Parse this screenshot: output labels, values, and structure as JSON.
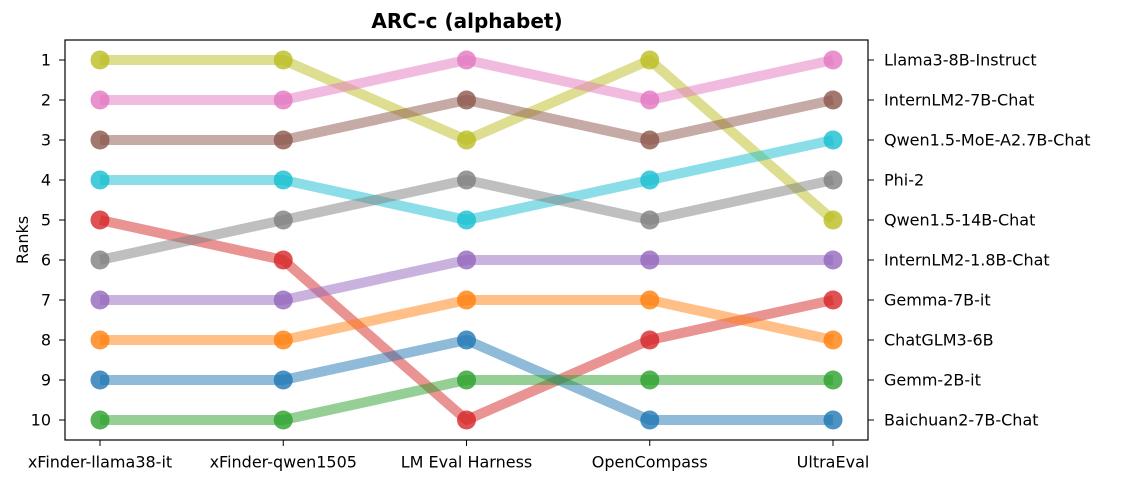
{
  "chart_data": {
    "type": "line",
    "title": "ARC-c (alphabet)",
    "xlabel": "",
    "ylabel": "Ranks",
    "categories": [
      "xFinder-llama38-it",
      "xFinder-qwen1505",
      "LM Eval Harness",
      "OpenCompass",
      "UltraEval"
    ],
    "y_ticks": [
      "1",
      "2",
      "3",
      "4",
      "5",
      "6",
      "7",
      "8",
      "9",
      "10"
    ],
    "ylim": [
      1,
      10
    ],
    "y_inverted": true,
    "right_labels": [
      "Llama3-8B-Instruct",
      "InternLM2-7B-Chat",
      "Qwen1.5-MoE-A2.7B-Chat",
      "Phi-2",
      "Qwen1.5-14B-Chat",
      "InternLM2-1.8B-Chat",
      "Gemma-7B-it",
      "ChatGLM3-6B",
      "Gemm-2B-it",
      "Baichuan2-7B-Chat"
    ],
    "series": [
      {
        "name": "olive",
        "color": "#bcbd22",
        "values": [
          1,
          1,
          3,
          1,
          5
        ]
      },
      {
        "name": "pink",
        "color": "#e377c2",
        "values": [
          2,
          2,
          1,
          2,
          1
        ]
      },
      {
        "name": "brown",
        "color": "#8c564b",
        "values": [
          3,
          3,
          2,
          3,
          2
        ]
      },
      {
        "name": "cyan",
        "color": "#17becf",
        "values": [
          4,
          4,
          5,
          4,
          3
        ]
      },
      {
        "name": "red",
        "color": "#d62728",
        "values": [
          5,
          6,
          10,
          8,
          7
        ]
      },
      {
        "name": "gray",
        "color": "#7f7f7f",
        "values": [
          6,
          5,
          4,
          5,
          4
        ]
      },
      {
        "name": "purple",
        "color": "#9467bd",
        "values": [
          7,
          7,
          6,
          6,
          6
        ]
      },
      {
        "name": "orange",
        "color": "#ff7f0e",
        "values": [
          8,
          8,
          7,
          7,
          8
        ]
      },
      {
        "name": "blue",
        "color": "#1f77b4",
        "values": [
          9,
          9,
          8,
          10,
          10
        ]
      },
      {
        "name": "green",
        "color": "#2ca02c",
        "values": [
          10,
          10,
          9,
          9,
          9
        ]
      }
    ]
  }
}
